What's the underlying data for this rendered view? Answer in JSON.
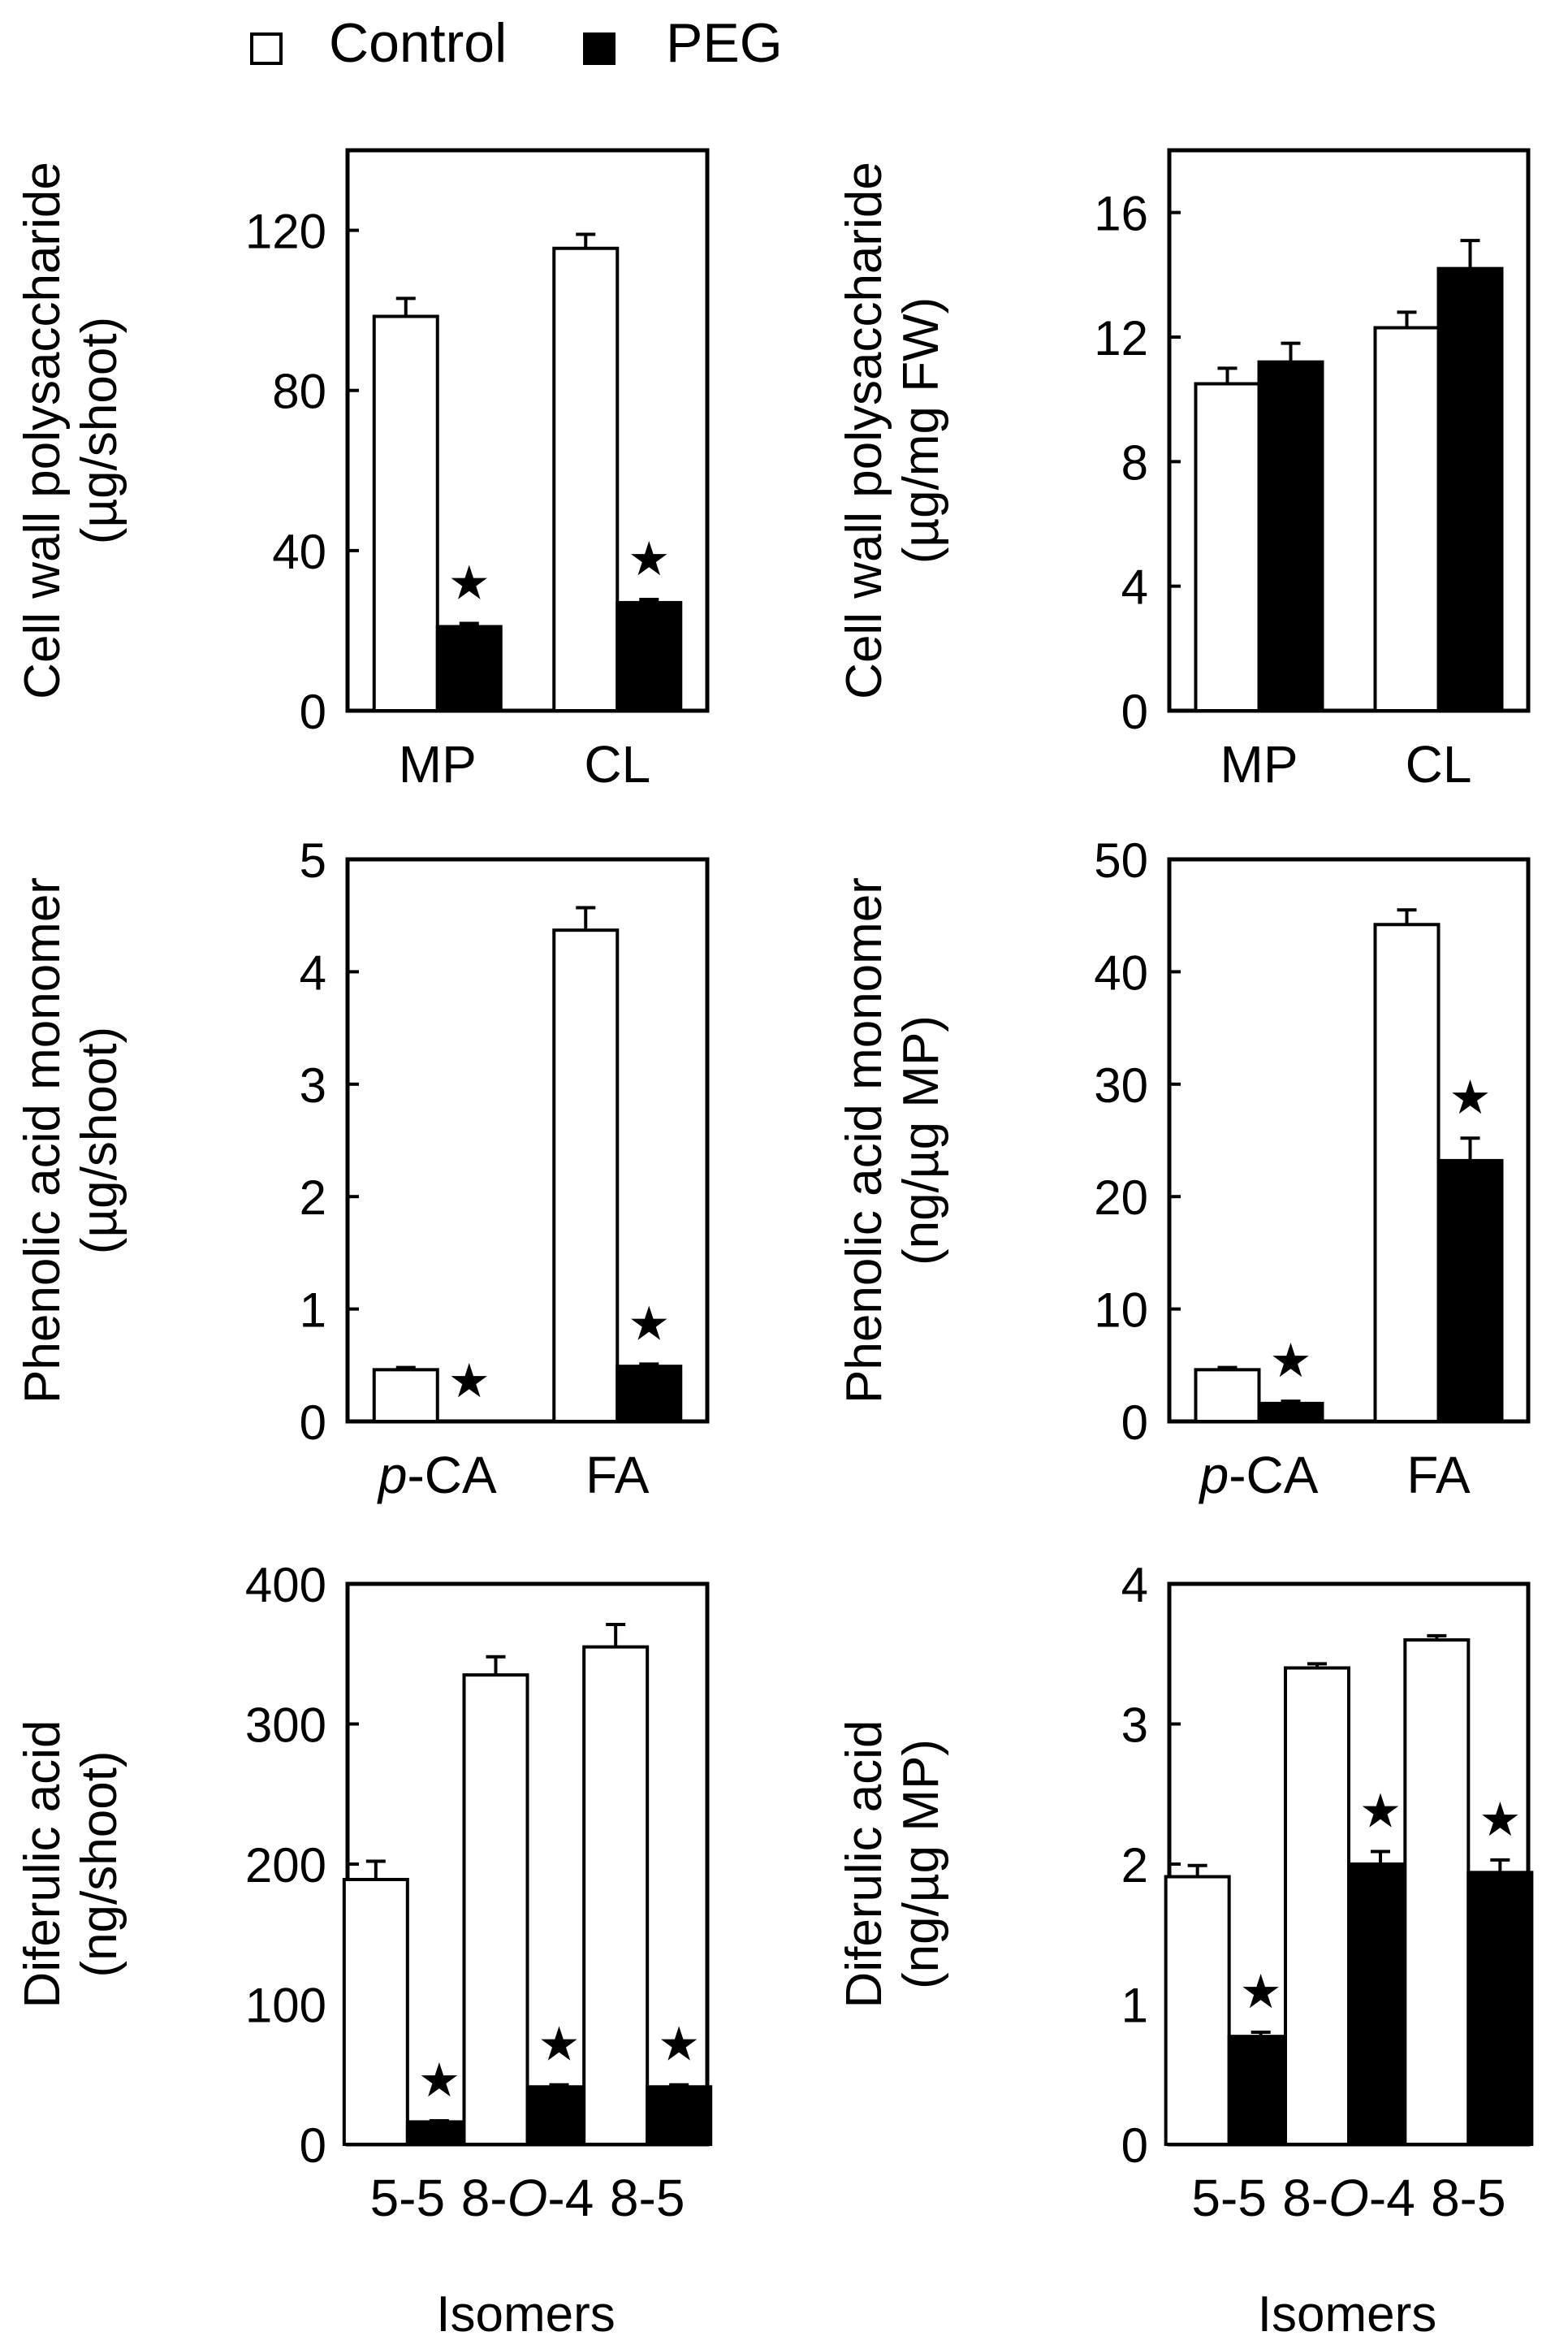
{
  "legend": {
    "items": [
      {
        "label": "Control",
        "color": "#ffffff"
      },
      {
        "label": "PEG",
        "color": "#000000"
      }
    ]
  },
  "chart_data": [
    {
      "type": "bar",
      "ylabel_line1": "Cell wall polysaccharide",
      "ylabel_line2": "(µg/shoot)",
      "ylim": [
        0,
        140
      ],
      "yticks": [
        0,
        40,
        80,
        120
      ],
      "categories": [
        [
          {
            "t": "MP"
          }
        ],
        [
          {
            "t": "CL"
          }
        ]
      ],
      "series": [
        {
          "name": "Control",
          "values": [
            98.5,
            115.5
          ],
          "errors": [
            4.5,
            3.5
          ],
          "sig": [
            false,
            false
          ]
        },
        {
          "name": "PEG",
          "values": [
            21,
            27
          ],
          "errors": [
            0.8,
            0.8
          ],
          "sig": [
            true,
            true
          ]
        }
      ],
      "xlabel": ""
    },
    {
      "type": "bar",
      "ylabel_line1": "Cell wall polysaccharide",
      "ylabel_line2": "(µg/mg FW)",
      "ylim": [
        0,
        18
      ],
      "yticks": [
        0,
        4,
        8,
        12,
        16
      ],
      "categories": [
        [
          {
            "t": "MP"
          }
        ],
        [
          {
            "t": "CL"
          }
        ]
      ],
      "series": [
        {
          "name": "Control",
          "values": [
            10.5,
            12.3
          ],
          "errors": [
            0.5,
            0.5
          ],
          "sig": [
            false,
            false
          ]
        },
        {
          "name": "PEG",
          "values": [
            11.2,
            14.2
          ],
          "errors": [
            0.6,
            0.9
          ],
          "sig": [
            false,
            false
          ]
        }
      ],
      "xlabel": ""
    },
    {
      "type": "bar",
      "ylabel_line1": "Phenolic acid monomer",
      "ylabel_line2": "(µg/shoot)",
      "ylim": [
        0,
        5
      ],
      "yticks": [
        0,
        1,
        2,
        3,
        4,
        5
      ],
      "categories": [
        [
          {
            "t": "p",
            "i": true
          },
          {
            "t": "-CA"
          }
        ],
        [
          {
            "t": "FA"
          }
        ]
      ],
      "series": [
        {
          "name": "Control",
          "values": [
            0.46,
            4.37
          ],
          "errors": [
            0.02,
            0.2
          ],
          "sig": [
            false,
            false
          ]
        },
        {
          "name": "PEG",
          "values": [
            0,
            0.49
          ],
          "errors": [
            0,
            0.02
          ],
          "sig": [
            true,
            true
          ]
        }
      ],
      "xlabel": ""
    },
    {
      "type": "bar",
      "ylabel_line1": "Phenolic acid monomer",
      "ylabel_line2": "(ng/µg MP)",
      "ylim": [
        0,
        50
      ],
      "yticks": [
        0,
        10,
        20,
        30,
        40,
        50
      ],
      "categories": [
        [
          {
            "t": "p",
            "i": true
          },
          {
            "t": "-CA"
          }
        ],
        [
          {
            "t": "FA"
          }
        ]
      ],
      "series": [
        {
          "name": "Control",
          "values": [
            4.6,
            44.2
          ],
          "errors": [
            0.2,
            1.3
          ],
          "sig": [
            false,
            false
          ]
        },
        {
          "name": "PEG",
          "values": [
            1.6,
            23.2
          ],
          "errors": [
            0.2,
            2.0
          ],
          "sig": [
            true,
            true
          ]
        }
      ],
      "xlabel": ""
    },
    {
      "type": "bar",
      "ylabel_line1": "Diferulic acid",
      "ylabel_line2": "(ng/shoot)",
      "ylim": [
        0,
        400
      ],
      "yticks": [
        0,
        100,
        200,
        300,
        400
      ],
      "categories": [
        [
          {
            "t": "5-5"
          }
        ],
        [
          {
            "t": "8-"
          },
          {
            "t": "O",
            "i": true
          },
          {
            "t": "-4"
          }
        ],
        [
          {
            "t": "8-5"
          }
        ]
      ],
      "series": [
        {
          "name": "Control",
          "values": [
            189,
            335,
            355
          ],
          "errors": [
            13,
            13,
            16
          ],
          "sig": [
            false,
            false,
            false
          ]
        },
        {
          "name": "PEG",
          "values": [
            16,
            41,
            41
          ],
          "errors": [
            0.8,
            1.5,
            1.5
          ],
          "sig": [
            true,
            true,
            true
          ]
        }
      ],
      "xlabel": "Isomers"
    },
    {
      "type": "bar",
      "ylabel_line1": "Diferulic acid",
      "ylabel_line2": "(ng/µg MP)",
      "ylim": [
        0,
        4
      ],
      "yticks": [
        0,
        1,
        2,
        3,
        4
      ],
      "categories": [
        [
          {
            "t": "5-5"
          }
        ],
        [
          {
            "t": "8-"
          },
          {
            "t": "O",
            "i": true
          },
          {
            "t": "-4"
          }
        ],
        [
          {
            "t": "8-5"
          }
        ]
      ],
      "series": [
        {
          "name": "Control",
          "values": [
            1.91,
            3.4,
            3.6
          ],
          "errors": [
            0.08,
            0.03,
            0.03
          ],
          "sig": [
            false,
            false,
            false
          ]
        },
        {
          "name": "PEG",
          "values": [
            0.77,
            2.0,
            1.94
          ],
          "errors": [
            0.03,
            0.09,
            0.09
          ],
          "sig": [
            true,
            true,
            true
          ]
        }
      ],
      "xlabel": "Isomers"
    }
  ],
  "significance_marker": "★"
}
